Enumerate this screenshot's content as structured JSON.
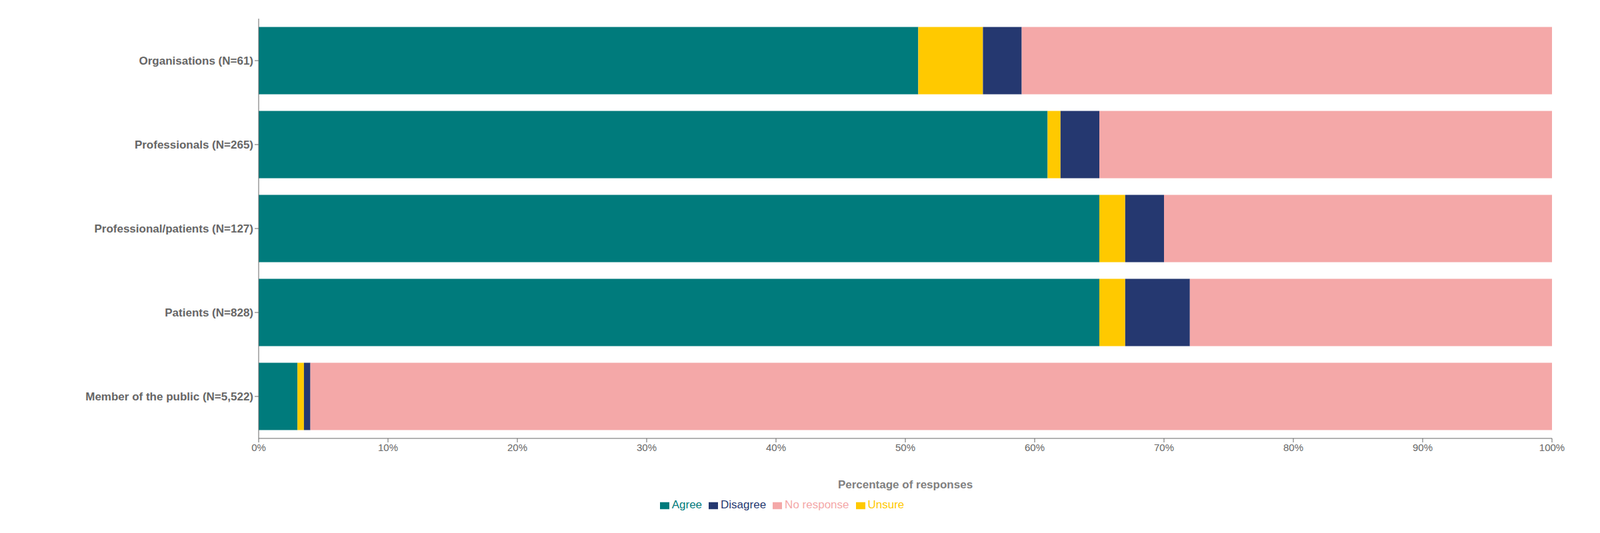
{
  "chart_data": {
    "type": "bar",
    "orientation": "horizontal",
    "stacked": true,
    "xlabel": "Percentage of responses",
    "categories": [
      "Organisations (N=61)",
      "Professionals (N=265)",
      "Professional/patients (N=127)",
      "Patients (N=828)",
      "Member of the public (N=5,522)"
    ],
    "series": [
      {
        "name": "Agree",
        "color": "#007B7C",
        "values": [
          51,
          61,
          65,
          65,
          3
        ]
      },
      {
        "name": "Unsure",
        "color": "#FFC900",
        "values": [
          5,
          1,
          2,
          2,
          0.5
        ]
      },
      {
        "name": "Disagree",
        "color": "#253870",
        "values": [
          3,
          3,
          3,
          5,
          0.5
        ]
      },
      {
        "name": "No response",
        "color": "#F4A8A8",
        "values": [
          41,
          35,
          30,
          28,
          96
        ]
      }
    ],
    "xlim": [
      0,
      100
    ],
    "xticks": [
      {
        "value": 0,
        "label": "0%"
      },
      {
        "value": 10,
        "label": "10%"
      },
      {
        "value": 20,
        "label": "20%"
      },
      {
        "value": 30,
        "label": "30%"
      },
      {
        "value": 40,
        "label": "40%"
      },
      {
        "value": 50,
        "label": "50%"
      },
      {
        "value": 60,
        "label": "60%"
      },
      {
        "value": 70,
        "label": "70%"
      },
      {
        "value": 80,
        "label": "80%"
      },
      {
        "value": 90,
        "label": "90%"
      },
      {
        "value": 100,
        "label": "100%"
      }
    ],
    "grid": false,
    "legend": "bottom"
  }
}
